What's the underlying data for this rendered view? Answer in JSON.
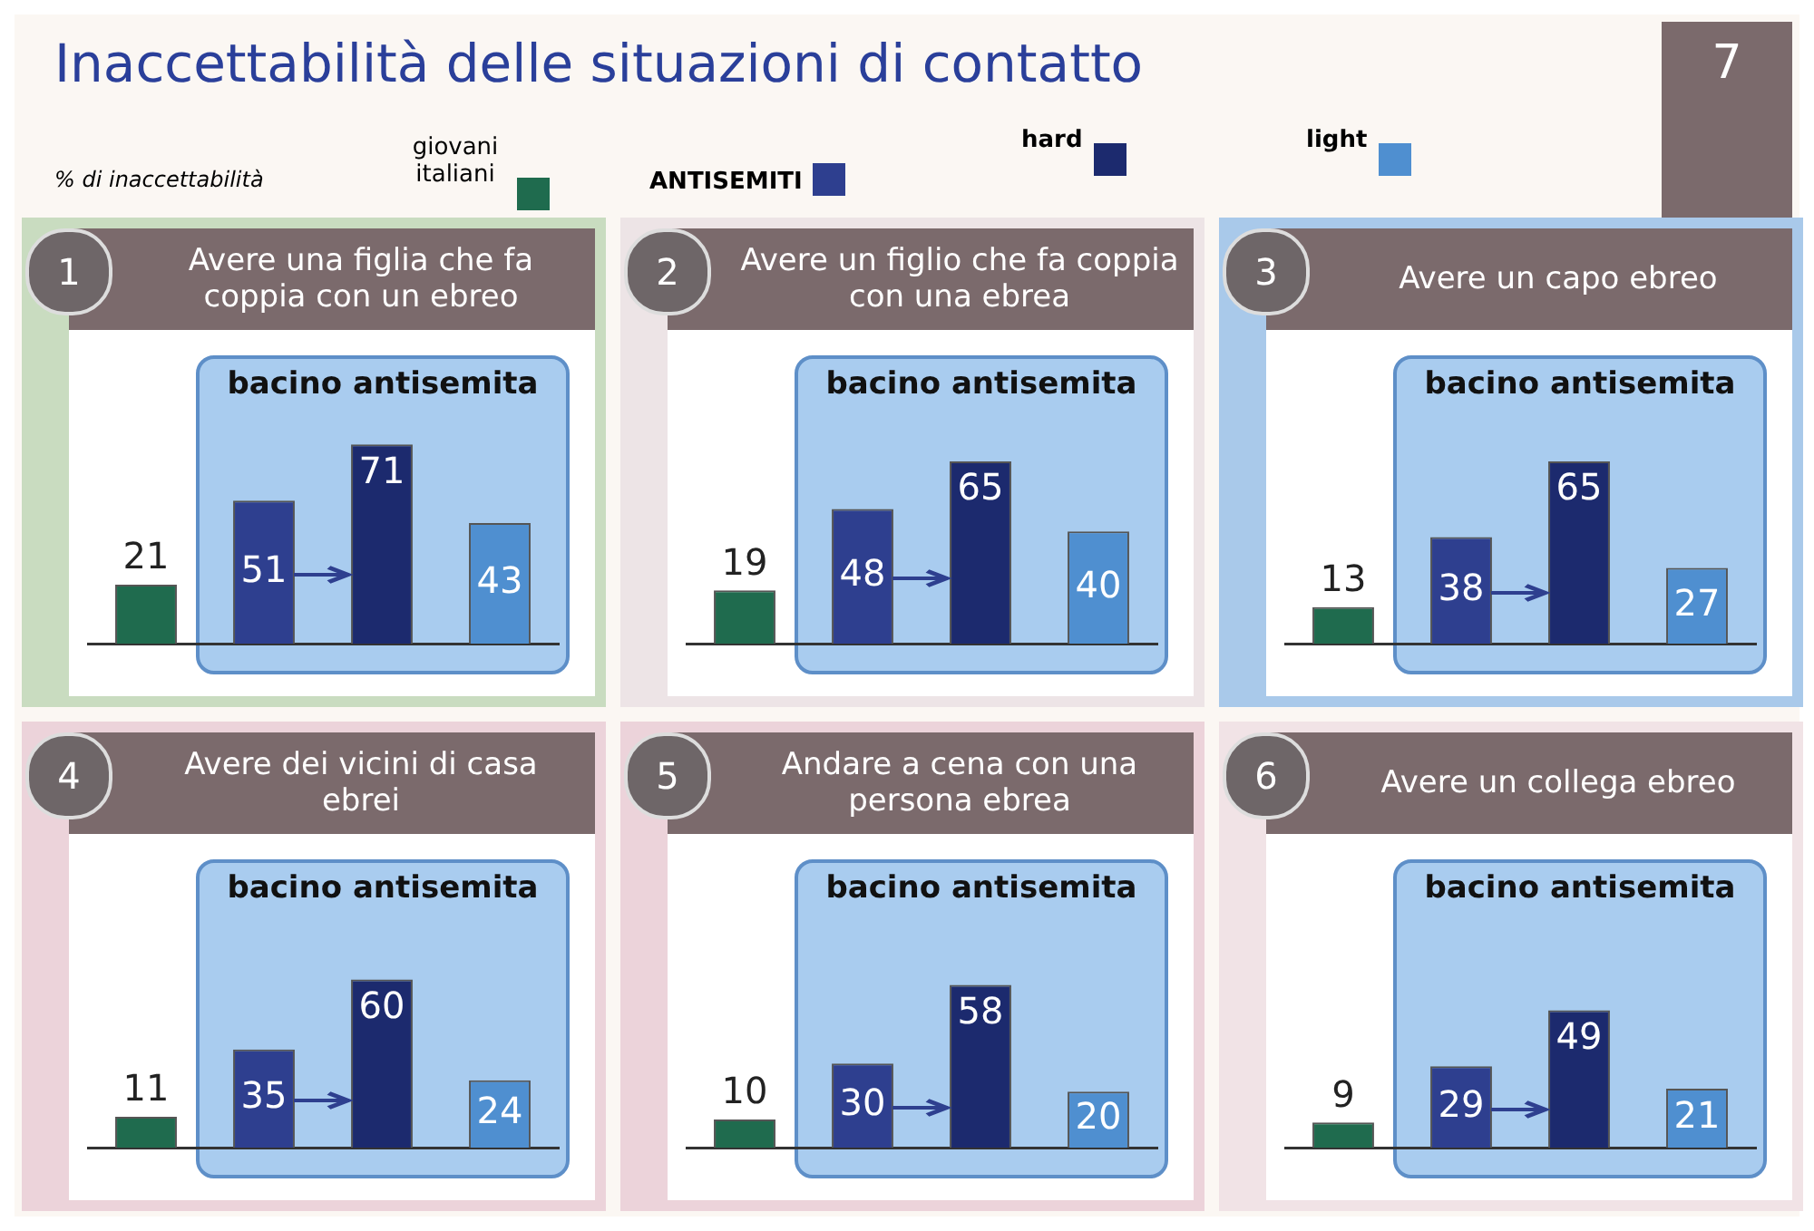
{
  "chart_data": [
    {
      "type": "other",
      "title": "Inaccettabilità delle situazioni di contatto",
      "annotations": [
        "% di inaccettabilità",
        "giovani italiani",
        "ANTISEMITI",
        "hard",
        "light",
        "7"
      ]
    },
    {
      "type": "bar",
      "title": "Avere una figlia che fa coppia con un ebreo",
      "categories": [
        null,
        null,
        null,
        null
      ],
      "values": [
        21,
        51,
        71,
        43
      ],
      "colors": [
        "#1f6b4e",
        "#2e3f8f",
        "#1c2a6e",
        "#4f8fd0"
      ],
      "data_labels": true,
      "annotations": [
        "1",
        "bacino antisemita"
      ]
    },
    {
      "type": "bar",
      "title": "Avere un figlio che fa coppia con una ebrea",
      "categories": [
        null,
        null,
        null,
        null
      ],
      "values": [
        19,
        48,
        65,
        40
      ],
      "colors": [
        "#1f6b4e",
        "#2e3f8f",
        "#1c2a6e",
        "#4f8fd0"
      ],
      "data_labels": true,
      "annotations": [
        "2",
        "bacino antisemita"
      ]
    },
    {
      "type": "bar",
      "title": "Avere un capo ebreo",
      "categories": [
        null,
        null,
        null,
        null
      ],
      "values": [
        13,
        38,
        65,
        27
      ],
      "colors": [
        "#1f6b4e",
        "#2e3f8f",
        "#1c2a6e",
        "#4f8fd0"
      ],
      "data_labels": true,
      "annotations": [
        "3",
        "bacino antisemita"
      ]
    },
    {
      "type": "bar",
      "title": "Avere dei vicini di casa ebrei",
      "categories": [
        null,
        null,
        null,
        null
      ],
      "values": [
        11,
        35,
        60,
        24
      ],
      "colors": [
        "#1f6b4e",
        "#2e3f8f",
        "#1c2a6e",
        "#4f8fd0"
      ],
      "data_labels": true,
      "annotations": [
        "4",
        "bacino antisemita"
      ]
    },
    {
      "type": "bar",
      "title": "Andare a cena con una persona ebrea",
      "categories": [
        null,
        null,
        null,
        null
      ],
      "values": [
        10,
        30,
        58,
        20
      ],
      "colors": [
        "#1f6b4e",
        "#2e3f8f",
        "#1c2a6e",
        "#4f8fd0"
      ],
      "data_labels": true,
      "annotations": [
        "5",
        "bacino antisemita"
      ]
    },
    {
      "type": "bar",
      "title": "Avere un collega ebreo",
      "categories": [
        null,
        null,
        null,
        null
      ],
      "values": [
        9,
        29,
        49,
        21
      ],
      "colors": [
        "#1f6b4e",
        "#2e3f8f",
        "#1c2a6e",
        "#4f8fd0"
      ],
      "data_labels": true,
      "annotations": [
        "6",
        "bacino antisemita"
      ]
    }
  ]
}
